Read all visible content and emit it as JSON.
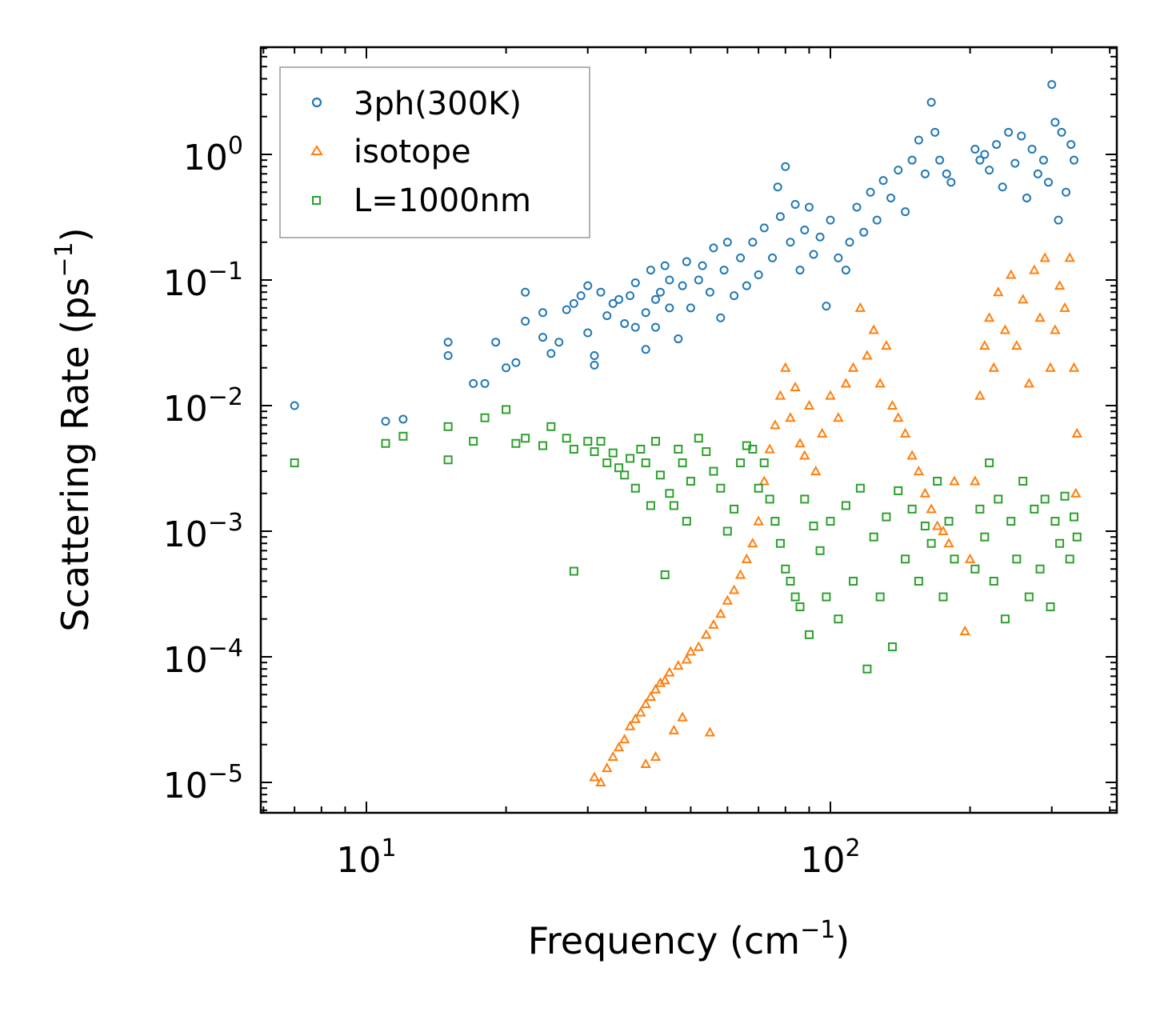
{
  "chart_data": {
    "type": "scatter",
    "xscale": "log",
    "yscale": "log",
    "xlim": [
      6.2,
      400
    ],
    "ylim": [
      6e-06,
      6.5
    ],
    "xlabel": "Frequency (cm",
    "xlabel_unit_sup": "−1",
    "xlabel_close": ")",
    "ylabel": "Scattering Rate (ps",
    "ylabel_unit_sup": "−1",
    "ylabel_close": ")",
    "x_tick_labels": [
      {
        "base": "10",
        "exp": "1",
        "value": 10
      },
      {
        "base": "10",
        "exp": "2",
        "value": 100
      }
    ],
    "y_tick_labels": [
      {
        "base": "10",
        "exp": "0",
        "value": 1
      },
      {
        "base": "10",
        "exp": "−1",
        "value": 0.1
      },
      {
        "base": "10",
        "exp": "−2",
        "value": 0.01
      },
      {
        "base": "10",
        "exp": "−3",
        "value": 0.001
      },
      {
        "base": "10",
        "exp": "−4",
        "value": 0.0001
      },
      {
        "base": "10",
        "exp": "−5",
        "value": 1e-05
      }
    ],
    "legend_position": "top-left",
    "series": [
      {
        "name": "3ph(300K)",
        "marker": "circle",
        "color": "#1f77b4",
        "points": [
          [
            7,
            0.01
          ],
          [
            11,
            0.0075
          ],
          [
            12,
            0.0078
          ],
          [
            15,
            0.025
          ],
          [
            15,
            0.032
          ],
          [
            17,
            0.015
          ],
          [
            18,
            0.015
          ],
          [
            19,
            0.032
          ],
          [
            20,
            0.02
          ],
          [
            21,
            0.022
          ],
          [
            22,
            0.047
          ],
          [
            22,
            0.08
          ],
          [
            24,
            0.035
          ],
          [
            24,
            0.055
          ],
          [
            25,
            0.026
          ],
          [
            26,
            0.032
          ],
          [
            27,
            0.058
          ],
          [
            28,
            0.065
          ],
          [
            29,
            0.075
          ],
          [
            30,
            0.038
          ],
          [
            30,
            0.09
          ],
          [
            31,
            0.021
          ],
          [
            31,
            0.025
          ],
          [
            32,
            0.08
          ],
          [
            33,
            0.052
          ],
          [
            34,
            0.065
          ],
          [
            35,
            0.07
          ],
          [
            36,
            0.045
          ],
          [
            37,
            0.075
          ],
          [
            38,
            0.042
          ],
          [
            38,
            0.095
          ],
          [
            40,
            0.028
          ],
          [
            40,
            0.055
          ],
          [
            41,
            0.12
          ],
          [
            42,
            0.042
          ],
          [
            42,
            0.07
          ],
          [
            43,
            0.08
          ],
          [
            44,
            0.13
          ],
          [
            45,
            0.06
          ],
          [
            45,
            0.1
          ],
          [
            47,
            0.034
          ],
          [
            48,
            0.09
          ],
          [
            49,
            0.14
          ],
          [
            50,
            0.06
          ],
          [
            52,
            0.1
          ],
          [
            53,
            0.13
          ],
          [
            55,
            0.08
          ],
          [
            56,
            0.18
          ],
          [
            58,
            0.05
          ],
          [
            59,
            0.12
          ],
          [
            60,
            0.2
          ],
          [
            62,
            0.075
          ],
          [
            64,
            0.15
          ],
          [
            66,
            0.09
          ],
          [
            68,
            0.2
          ],
          [
            70,
            0.11
          ],
          [
            72,
            0.26
          ],
          [
            75,
            0.15
          ],
          [
            77,
            0.55
          ],
          [
            78,
            0.32
          ],
          [
            80,
            0.8
          ],
          [
            82,
            0.2
          ],
          [
            84,
            0.4
          ],
          [
            86,
            0.12
          ],
          [
            88,
            0.25
          ],
          [
            90,
            0.38
          ],
          [
            92,
            0.16
          ],
          [
            95,
            0.22
          ],
          [
            98,
            0.062
          ],
          [
            100,
            0.3
          ],
          [
            104,
            0.15
          ],
          [
            108,
            0.12
          ],
          [
            110,
            0.2
          ],
          [
            114,
            0.38
          ],
          [
            118,
            0.24
          ],
          [
            122,
            0.5
          ],
          [
            126,
            0.3
          ],
          [
            130,
            0.62
          ],
          [
            135,
            0.45
          ],
          [
            140,
            0.75
          ],
          [
            145,
            0.35
          ],
          [
            150,
            0.9
          ],
          [
            155,
            1.3
          ],
          [
            160,
            0.7
          ],
          [
            165,
            2.6
          ],
          [
            168,
            1.5
          ],
          [
            172,
            0.9
          ],
          [
            178,
            0.7
          ],
          [
            182,
            0.6
          ],
          [
            205,
            1.1
          ],
          [
            210,
            0.9
          ],
          [
            215,
            1.0
          ],
          [
            220,
            0.75
          ],
          [
            228,
            1.2
          ],
          [
            235,
            0.55
          ],
          [
            242,
            1.5
          ],
          [
            250,
            0.85
          ],
          [
            258,
            1.4
          ],
          [
            265,
            0.45
          ],
          [
            272,
            1.1
          ],
          [
            280,
            0.7
          ],
          [
            288,
            0.9
          ],
          [
            295,
            0.6
          ],
          [
            300,
            3.6
          ],
          [
            305,
            1.8
          ],
          [
            310,
            0.3
          ],
          [
            315,
            1.5
          ],
          [
            322,
            0.5
          ],
          [
            330,
            1.2
          ],
          [
            335,
            0.9
          ]
        ]
      },
      {
        "name": "isotope",
        "marker": "triangle",
        "color": "#ff7f0e",
        "points": [
          [
            31,
            1.1e-05
          ],
          [
            32,
            1e-05
          ],
          [
            33,
            1.3e-05
          ],
          [
            34,
            1.6e-05
          ],
          [
            35,
            1.9e-05
          ],
          [
            36,
            2.2e-05
          ],
          [
            37,
            2.8e-05
          ],
          [
            38,
            3.2e-05
          ],
          [
            39,
            3.6e-05
          ],
          [
            40,
            1.4e-05
          ],
          [
            40,
            4.2e-05
          ],
          [
            41,
            4.8e-05
          ],
          [
            42,
            5.5e-05
          ],
          [
            42,
            1.6e-05
          ],
          [
            43,
            6.2e-05
          ],
          [
            44,
            6.5e-05
          ],
          [
            45,
            7.5e-05
          ],
          [
            46,
            2.6e-05
          ],
          [
            47,
            8.5e-05
          ],
          [
            48,
            3.3e-05
          ],
          [
            49,
            9.5e-05
          ],
          [
            50,
            0.00011
          ],
          [
            52,
            0.00012
          ],
          [
            54,
            0.00015
          ],
          [
            55,
            2.5e-05
          ],
          [
            56,
            0.00018
          ],
          [
            58,
            0.00022
          ],
          [
            60,
            0.00028
          ],
          [
            62,
            0.00034
          ],
          [
            64,
            0.00045
          ],
          [
            66,
            0.0006
          ],
          [
            68,
            0.0008
          ],
          [
            70,
            0.0012
          ],
          [
            72,
            0.0025
          ],
          [
            74,
            0.0045
          ],
          [
            76,
            0.007
          ],
          [
            78,
            0.012
          ],
          [
            80,
            0.02
          ],
          [
            82,
            0.008
          ],
          [
            84,
            0.014
          ],
          [
            86,
            0.005
          ],
          [
            88,
            0.004
          ],
          [
            90,
            0.01
          ],
          [
            93,
            0.003
          ],
          [
            96,
            0.006
          ],
          [
            100,
            0.012
          ],
          [
            104,
            0.008
          ],
          [
            108,
            0.015
          ],
          [
            112,
            0.02
          ],
          [
            116,
            0.06
          ],
          [
            120,
            0.025
          ],
          [
            124,
            0.04
          ],
          [
            128,
            0.015
          ],
          [
            132,
            0.03
          ],
          [
            136,
            0.01
          ],
          [
            140,
            0.008
          ],
          [
            145,
            0.006
          ],
          [
            150,
            0.004
          ],
          [
            155,
            0.003
          ],
          [
            160,
            0.002
          ],
          [
            165,
            0.0015
          ],
          [
            170,
            0.0011
          ],
          [
            175,
            0.001
          ],
          [
            180,
            0.0008
          ],
          [
            185,
            0.0025
          ],
          [
            195,
            0.00016
          ],
          [
            200,
            0.0006
          ],
          [
            205,
            0.0025
          ],
          [
            210,
            0.012
          ],
          [
            215,
            0.03
          ],
          [
            220,
            0.05
          ],
          [
            225,
            0.02
          ],
          [
            230,
            0.08
          ],
          [
            238,
            0.04
          ],
          [
            245,
            0.11
          ],
          [
            252,
            0.03
          ],
          [
            260,
            0.07
          ],
          [
            268,
            0.015
          ],
          [
            275,
            0.12
          ],
          [
            283,
            0.05
          ],
          [
            290,
            0.15
          ],
          [
            298,
            0.02
          ],
          [
            305,
            0.04
          ],
          [
            312,
            0.09
          ],
          [
            320,
            0.06
          ],
          [
            328,
            0.15
          ],
          [
            335,
            0.02
          ],
          [
            338,
            0.002
          ],
          [
            340,
            0.006
          ]
        ]
      },
      {
        "name": "L=1000nm",
        "marker": "square",
        "color": "#2ca02c",
        "points": [
          [
            7,
            0.0035
          ],
          [
            11,
            0.005
          ],
          [
            12,
            0.0057
          ],
          [
            15,
            0.0068
          ],
          [
            15,
            0.0037
          ],
          [
            17,
            0.0052
          ],
          [
            18,
            0.008
          ],
          [
            20,
            0.0093
          ],
          [
            21,
            0.005
          ],
          [
            22,
            0.0055
          ],
          [
            24,
            0.0048
          ],
          [
            25,
            0.0068
          ],
          [
            27,
            0.0055
          ],
          [
            28,
            0.0045
          ],
          [
            28,
            0.00048
          ],
          [
            30,
            0.0052
          ],
          [
            31,
            0.0043
          ],
          [
            32,
            0.0052
          ],
          [
            33,
            0.0035
          ],
          [
            34,
            0.0042
          ],
          [
            35,
            0.0032
          ],
          [
            36,
            0.0028
          ],
          [
            37,
            0.0038
          ],
          [
            38,
            0.0022
          ],
          [
            39,
            0.0045
          ],
          [
            40,
            0.0035
          ],
          [
            41,
            0.0016
          ],
          [
            42,
            0.0052
          ],
          [
            43,
            0.0028
          ],
          [
            44,
            0.00045
          ],
          [
            45,
            0.002
          ],
          [
            46,
            0.0016
          ],
          [
            47,
            0.0045
          ],
          [
            48,
            0.0035
          ],
          [
            49,
            0.0012
          ],
          [
            50,
            0.0025
          ],
          [
            52,
            0.0055
          ],
          [
            54,
            0.0043
          ],
          [
            56,
            0.003
          ],
          [
            58,
            0.0022
          ],
          [
            60,
            0.001
          ],
          [
            62,
            0.0015
          ],
          [
            64,
            0.0035
          ],
          [
            66,
            0.0048
          ],
          [
            68,
            0.0045
          ],
          [
            70,
            0.0022
          ],
          [
            72,
            0.0035
          ],
          [
            74,
            0.0018
          ],
          [
            76,
            0.0012
          ],
          [
            78,
            0.0008
          ],
          [
            80,
            0.0005
          ],
          [
            82,
            0.0004
          ],
          [
            84,
            0.0003
          ],
          [
            86,
            0.00025
          ],
          [
            88,
            0.0018
          ],
          [
            90,
            0.00015
          ],
          [
            92,
            0.0011
          ],
          [
            95,
            0.0007
          ],
          [
            98,
            0.0003
          ],
          [
            100,
            0.0012
          ],
          [
            104,
            0.0002
          ],
          [
            108,
            0.0016
          ],
          [
            112,
            0.0004
          ],
          [
            116,
            0.0022
          ],
          [
            120,
            8e-05
          ],
          [
            124,
            0.0009
          ],
          [
            128,
            0.0003
          ],
          [
            132,
            0.0013
          ],
          [
            136,
            0.00012
          ],
          [
            140,
            0.0021
          ],
          [
            145,
            0.0006
          ],
          [
            150,
            0.0015
          ],
          [
            155,
            0.0004
          ],
          [
            160,
            0.0011
          ],
          [
            165,
            0.0008
          ],
          [
            170,
            0.0025
          ],
          [
            175,
            0.0003
          ],
          [
            180,
            0.0012
          ],
          [
            185,
            0.0006
          ],
          [
            205,
            0.0005
          ],
          [
            210,
            0.0015
          ],
          [
            215,
            0.0009
          ],
          [
            220,
            0.0035
          ],
          [
            225,
            0.0004
          ],
          [
            230,
            0.0018
          ],
          [
            238,
            0.0002
          ],
          [
            245,
            0.0012
          ],
          [
            252,
            0.0006
          ],
          [
            260,
            0.0025
          ],
          [
            268,
            0.0003
          ],
          [
            275,
            0.0015
          ],
          [
            283,
            0.0005
          ],
          [
            290,
            0.0018
          ],
          [
            298,
            0.00025
          ],
          [
            305,
            0.0012
          ],
          [
            312,
            0.0008
          ],
          [
            320,
            0.0019
          ],
          [
            328,
            0.0006
          ],
          [
            335,
            0.0013
          ],
          [
            340,
            0.0009
          ]
        ]
      }
    ]
  }
}
